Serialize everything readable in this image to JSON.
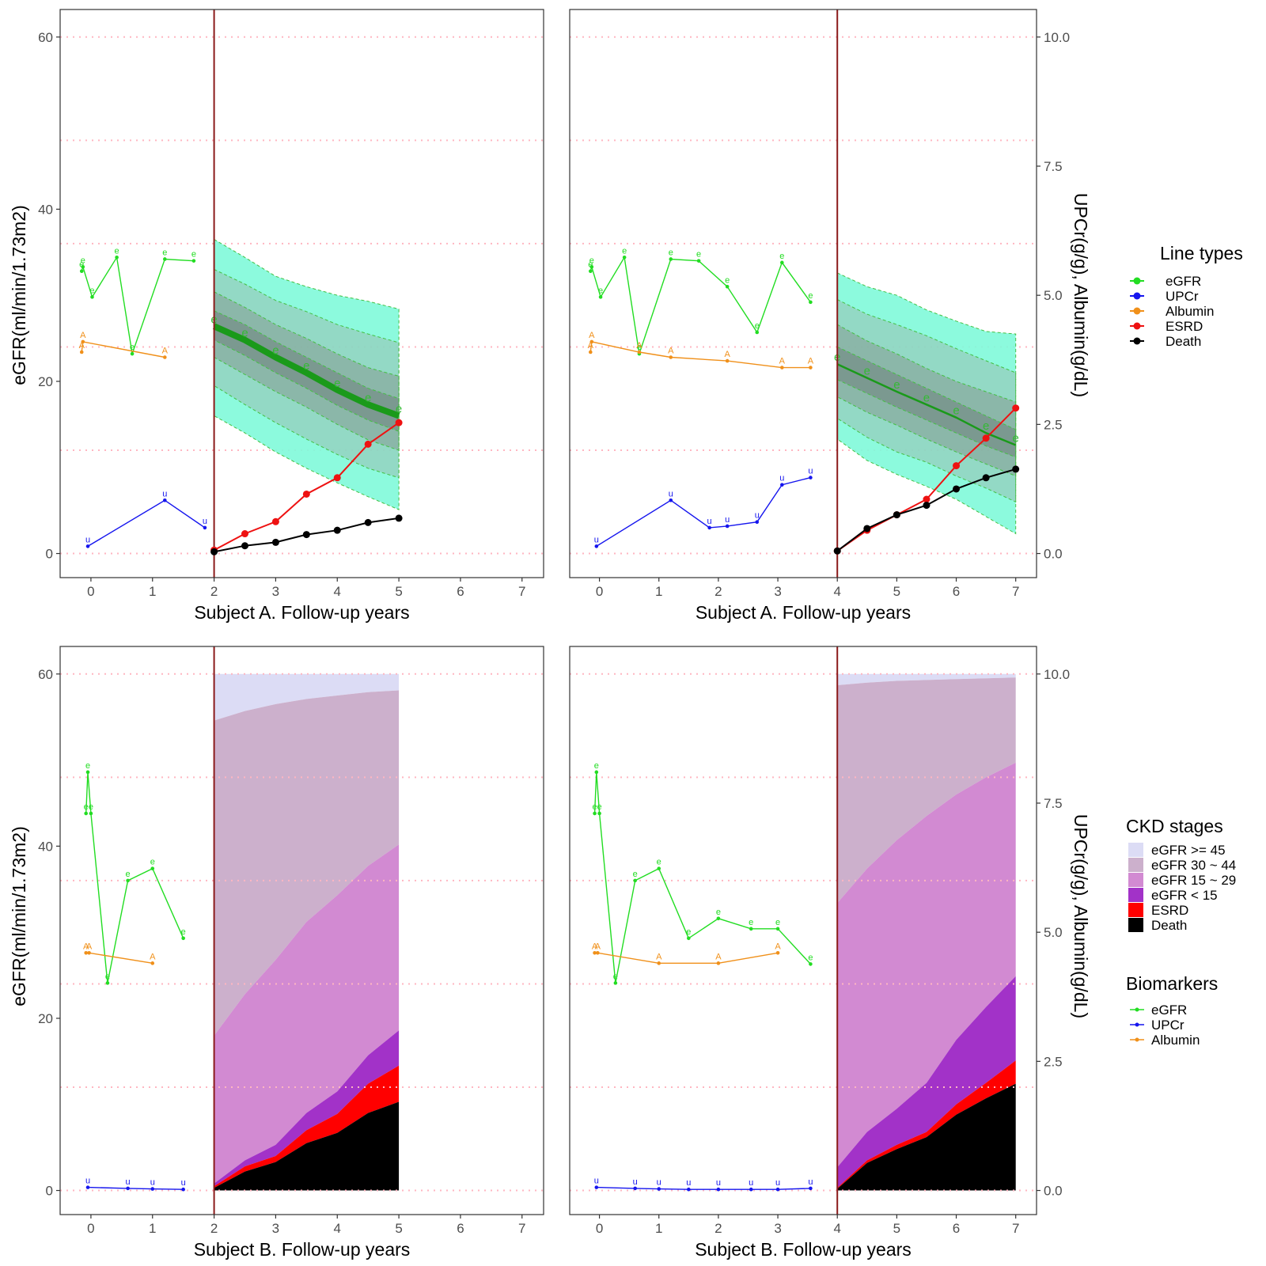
{
  "left_axis_title": "eGFR(ml/min/1.73m2)",
  "right_axis_title": "UPCr(g/g), Albumin(g/dL)",
  "legends": {
    "line_types": {
      "title": "Line types",
      "items": [
        {
          "label": "eGFR",
          "color": "#22dd22"
        },
        {
          "label": "UPCr",
          "color": "#1515ee"
        },
        {
          "label": "Albumin",
          "color": "#f0901a"
        },
        {
          "label": "ESRD",
          "color": "#ee1111"
        },
        {
          "label": "Death",
          "color": "#000000"
        }
      ]
    },
    "ckd_stages": {
      "title": "CKD stages",
      "items": [
        {
          "label": "eGFR >= 45",
          "color": "#dcdcf5"
        },
        {
          "label": "eGFR 30 ~ 44",
          "color": "#ccb0cc"
        },
        {
          "label": "eGFR 15 ~ 29",
          "color": "#d28ad2"
        },
        {
          "label": "eGFR < 15",
          "color": "#a232c8"
        },
        {
          "label": "ESRD",
          "color": "#ff0000"
        },
        {
          "label": "Death",
          "color": "#000000"
        }
      ]
    },
    "biomarkers": {
      "title": "Biomarkers",
      "items": [
        {
          "label": "eGFR",
          "color": "#22dd22"
        },
        {
          "label": "UPCr",
          "color": "#1515ee"
        },
        {
          "label": "Albumin",
          "color": "#f0901a"
        }
      ]
    }
  },
  "chart_data": [
    {
      "type": "line",
      "panel": "A-landmark-2",
      "xlabel": "Subject A. Follow-up years",
      "ylabel": "eGFR(ml/min/1.73m2)",
      "y2label": "UPCr(g/g), Albumin(g/dL)",
      "xlim": [
        -0.5,
        7.35
      ],
      "ylim": [
        -2.8,
        63.2
      ],
      "y2lim": [
        -0.467,
        10.533
      ],
      "xticks": [
        0,
        1,
        2,
        3,
        4,
        5,
        6,
        7
      ],
      "yticks": [
        0,
        20,
        40,
        60
      ],
      "y2ticks": [
        "0.0",
        "2.5",
        "5.0",
        "7.5",
        "10.0"
      ],
      "landmark": 2,
      "gridlines_y": [
        0,
        12,
        24,
        36,
        48,
        60
      ],
      "egfr": {
        "x": [
          -0.15,
          -0.13,
          0.02,
          0.42,
          0.67,
          1.2,
          1.67
        ],
        "y": [
          32.8,
          33.3,
          29.8,
          34.4,
          23.2,
          34.2,
          34.0
        ]
      },
      "upcr": {
        "x": [
          -0.05,
          1.2,
          1.85
        ],
        "y": [
          0.14,
          1.03,
          0.5
        ]
      },
      "albumin": {
        "x": [
          -0.15,
          -0.13,
          1.2
        ],
        "y": [
          3.9,
          4.1,
          3.8
        ]
      },
      "prediction": {
        "x": [
          2,
          2.5,
          3,
          3.5,
          4,
          4.5,
          5
        ],
        "mean": [
          26.4,
          24.8,
          22.8,
          21.0,
          19.0,
          17.3,
          16.0
        ],
        "band95": {
          "lower": [
            16.0,
            14.0,
            11.8,
            9.9,
            8.2,
            6.6,
            5.1
          ],
          "upper": [
            36.5,
            34.4,
            32.2,
            31.0,
            30.0,
            29.3,
            28.4
          ]
        },
        "band80": {
          "lower": [
            19.5,
            17.3,
            15.2,
            13.3,
            11.5,
            9.9,
            8.8
          ],
          "upper": [
            33.0,
            31.3,
            29.4,
            28.1,
            26.6,
            25.5,
            24.5
          ]
        },
        "band50": {
          "lower": [
            22.8,
            20.8,
            18.8,
            17.0,
            15.0,
            13.2,
            12.0
          ],
          "upper": [
            30.4,
            28.6,
            26.6,
            25.0,
            23.2,
            21.6,
            20.6
          ]
        },
        "band20": {
          "lower": [
            24.8,
            23.0,
            21.0,
            19.2,
            17.2,
            15.5,
            14.2
          ],
          "upper": [
            28.2,
            26.6,
            24.6,
            22.8,
            21.0,
            19.2,
            18.0
          ]
        }
      },
      "esrd": {
        "x": [
          2,
          2.5,
          3,
          3.5,
          4,
          4.5,
          5
        ],
        "y": [
          0.4,
          2.3,
          3.7,
          6.9,
          8.8,
          12.7,
          15.2
        ]
      },
      "death": {
        "x": [
          2,
          2.5,
          3,
          3.5,
          4,
          4.5,
          5
        ],
        "y": [
          0.2,
          0.9,
          1.3,
          2.2,
          2.7,
          3.6,
          4.1
        ]
      }
    },
    {
      "type": "line",
      "panel": "A-landmark-4",
      "xlabel": "Subject A. Follow-up years",
      "xlim": [
        -0.5,
        7.35
      ],
      "ylim": [
        -2.8,
        63.2
      ],
      "xticks": [
        0,
        1,
        2,
        3,
        4,
        5,
        6,
        7
      ],
      "landmark": 4,
      "egfr": {
        "x": [
          -0.15,
          -0.13,
          0.02,
          0.42,
          0.67,
          1.2,
          1.67,
          2.15,
          2.65,
          3.07,
          3.55
        ],
        "y": [
          32.8,
          33.3,
          29.8,
          34.4,
          23.2,
          34.2,
          34.0,
          31.0,
          25.7,
          33.8,
          29.2
        ]
      },
      "upcr": {
        "x": [
          -0.05,
          1.2,
          1.85,
          2.15,
          2.65,
          3.07,
          3.55
        ],
        "y": [
          0.14,
          1.03,
          0.5,
          0.53,
          0.61,
          1.33,
          1.47
        ]
      },
      "albumin": {
        "x": [
          -0.15,
          -0.13,
          0.67,
          1.2,
          2.15,
          3.07,
          3.55
        ],
        "y": [
          3.9,
          4.1,
          3.9,
          3.8,
          3.73,
          3.6,
          3.6
        ]
      },
      "prediction": {
        "x": [
          4,
          4.5,
          5,
          5.5,
          6,
          6.5,
          7
        ],
        "mean": [
          22.0,
          20.4,
          18.8,
          17.3,
          15.8,
          14.0,
          12.6
        ],
        "band95": {
          "lower": [
            13.3,
            10.8,
            9.2,
            7.8,
            6.3,
            4.3,
            2.3
          ],
          "upper": [
            32.6,
            31.0,
            30.0,
            28.3,
            27.0,
            25.8,
            25.5
          ]
        },
        "band80": {
          "lower": [
            15.7,
            13.5,
            11.8,
            10.6,
            9.0,
            7.6,
            6.0
          ],
          "upper": [
            29.5,
            27.8,
            26.6,
            25.3,
            23.8,
            22.4,
            21.0
          ]
        },
        "band50": {
          "lower": [
            18.2,
            16.4,
            14.9,
            13.3,
            11.8,
            10.4,
            9.0
          ],
          "upper": [
            26.6,
            24.7,
            23.2,
            21.5,
            20.0,
            18.8,
            17.6
          ]
        },
        "band20": {
          "lower": [
            20.2,
            18.6,
            17.0,
            15.5,
            14.0,
            12.5,
            11.2
          ],
          "upper": [
            24.0,
            22.4,
            20.8,
            19.2,
            17.6,
            16.0,
            14.4
          ]
        }
      },
      "esrd": {
        "x": [
          4,
          4.5,
          5,
          5.5,
          6,
          6.5,
          7
        ],
        "y": [
          0.3,
          2.7,
          4.5,
          6.3,
          10.2,
          13.4,
          16.9
        ]
      },
      "death": {
        "x": [
          4,
          4.5,
          5,
          5.5,
          6,
          6.5,
          7
        ],
        "y": [
          0.3,
          2.9,
          4.5,
          5.6,
          7.5,
          8.8,
          9.8
        ]
      }
    },
    {
      "type": "area",
      "panel": "B-landmark-2",
      "xlabel": "Subject B. Follow-up years",
      "ylabel": "eGFR(ml/min/1.73m2)",
      "y2label": "UPCr(g/g), Albumin(g/dL)",
      "xlim": [
        -0.5,
        7.35
      ],
      "ylim": [
        -2.8,
        63.2
      ],
      "xticks": [
        0,
        1,
        2,
        3,
        4,
        5,
        6,
        7
      ],
      "landmark": 2,
      "egfr": {
        "x": [
          -0.08,
          -0.05,
          0.0,
          0.27,
          0.6,
          1.0,
          1.5
        ],
        "y": [
          43.8,
          48.6,
          43.8,
          24.1,
          36.0,
          37.4,
          29.3
        ]
      },
      "upcr": {
        "x": [
          -0.05,
          0.6,
          1.0,
          1.5
        ],
        "y": [
          0.06,
          0.04,
          0.03,
          0.02
        ]
      },
      "albumin": {
        "x": [
          -0.08,
          -0.03,
          1.0
        ],
        "y": [
          4.6,
          4.6,
          4.4
        ]
      },
      "stages": {
        "x": [
          2,
          2.5,
          3,
          3.5,
          4,
          4.5,
          5
        ],
        "death": [
          0.3,
          2.2,
          3.3,
          5.5,
          6.7,
          9.0,
          10.3
        ],
        "esrd": [
          0.5,
          2.8,
          4.0,
          7.0,
          8.9,
          12.4,
          14.5
        ],
        "lt15": [
          0.8,
          3.5,
          5.3,
          9.0,
          11.5,
          15.7,
          18.6
        ],
        "s15_29": [
          18.0,
          22.8,
          26.8,
          31.2,
          34.3,
          37.7,
          40.2
        ],
        "s30_44": [
          54.6,
          55.7,
          56.5,
          57.1,
          57.5,
          57.9,
          58.1
        ],
        "ge45": [
          60,
          60,
          60,
          60,
          60,
          60,
          60
        ]
      }
    },
    {
      "type": "area",
      "panel": "B-landmark-4",
      "xlabel": "Subject B. Follow-up years",
      "xlim": [
        -0.5,
        7.35
      ],
      "ylim": [
        -2.8,
        63.2
      ],
      "xticks": [
        0,
        1,
        2,
        3,
        4,
        5,
        6,
        7
      ],
      "landmark": 4,
      "egfr": {
        "x": [
          -0.08,
          -0.05,
          0.0,
          0.27,
          0.6,
          1.0,
          1.5,
          2.0,
          2.55,
          3.0,
          3.55
        ],
        "y": [
          43.8,
          48.6,
          43.8,
          24.1,
          36.0,
          37.4,
          29.3,
          31.6,
          30.4,
          30.4,
          26.3
        ]
      },
      "upcr": {
        "x": [
          -0.05,
          0.6,
          1.0,
          1.5,
          2.0,
          2.55,
          3.0,
          3.55
        ],
        "y": [
          0.06,
          0.04,
          0.03,
          0.02,
          0.02,
          0.02,
          0.02,
          0.04
        ]
      },
      "albumin": {
        "x": [
          -0.08,
          -0.03,
          1.0,
          2.0,
          3.0
        ],
        "y": [
          4.6,
          4.6,
          4.4,
          4.4,
          4.6
        ]
      },
      "stages": {
        "x": [
          4,
          4.5,
          5,
          5.5,
          6,
          6.5,
          7
        ],
        "death": [
          0.2,
          3.2,
          4.8,
          6.2,
          8.8,
          10.7,
          12.4
        ],
        "esrd": [
          0.3,
          3.5,
          5.3,
          6.8,
          10.0,
          12.5,
          15.1
        ],
        "lt15": [
          2.7,
          6.8,
          9.5,
          12.5,
          17.5,
          21.3,
          24.9
        ],
        "s15_29": [
          33.4,
          37.4,
          40.7,
          43.5,
          46.0,
          48.0,
          49.7
        ],
        "s30_44": [
          58.7,
          59.0,
          59.2,
          59.3,
          59.4,
          59.5,
          59.6
        ],
        "ge45": [
          60,
          60,
          60,
          60,
          60,
          60,
          60
        ]
      }
    }
  ]
}
